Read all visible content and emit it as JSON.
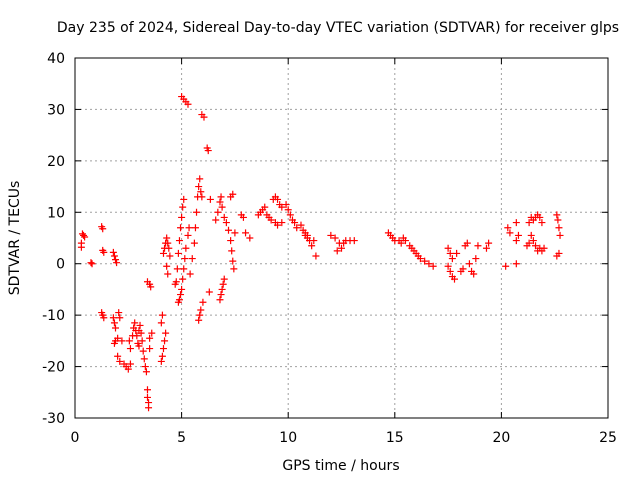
{
  "chart_data": {
    "type": "scatter",
    "title": "Day 235 of 2024, Sidereal Day-to-day VTEC variation (SDTVAR) for receiver glps",
    "xlabel": "GPS time / hours",
    "ylabel": "SDTVAR / TECUs",
    "xlim": [
      0,
      25
    ],
    "ylim": [
      -30,
      40
    ],
    "xticks": [
      "0",
      "5",
      "10",
      "15",
      "20",
      "25"
    ],
    "yticks": [
      "-30",
      "-20",
      "-10",
      "0",
      "10",
      "20",
      "30",
      "40"
    ],
    "xtick_values": [
      0,
      5,
      10,
      15,
      20,
      25
    ],
    "ytick_values": [
      -30,
      -20,
      -10,
      0,
      10,
      20,
      30,
      40
    ],
    "grid": true,
    "marker": "+",
    "color": "#ff0000",
    "series": [
      {
        "name": "SDTVAR",
        "points": [
          [
            0.3,
            3.2
          ],
          [
            0.3,
            4.0
          ],
          [
            0.35,
            5.8
          ],
          [
            0.4,
            5.5
          ],
          [
            0.45,
            5.2
          ],
          [
            0.75,
            0.2
          ],
          [
            0.8,
            0.0
          ],
          [
            1.25,
            -9.5
          ],
          [
            1.3,
            -10.0
          ],
          [
            1.35,
            -10.5
          ],
          [
            1.3,
            2.6
          ],
          [
            1.35,
            2.2
          ],
          [
            1.25,
            7.2
          ],
          [
            1.3,
            6.8
          ],
          [
            1.8,
            -10.5
          ],
          [
            1.85,
            -11.5
          ],
          [
            1.9,
            -12.5
          ],
          [
            1.85,
            -15.5
          ],
          [
            1.9,
            -15.0
          ],
          [
            1.8,
            2.2
          ],
          [
            1.85,
            1.5
          ],
          [
            1.9,
            0.8
          ],
          [
            1.95,
            0.2
          ],
          [
            2.0,
            -18.0
          ],
          [
            2.1,
            -19.0
          ],
          [
            2.0,
            -14.5
          ],
          [
            2.05,
            -9.5
          ],
          [
            2.1,
            -10.5
          ],
          [
            2.2,
            -15.0
          ],
          [
            2.3,
            -19.5
          ],
          [
            2.4,
            -20.0
          ],
          [
            2.5,
            -20.5
          ],
          [
            2.6,
            -19.5
          ],
          [
            2.55,
            -15.0
          ],
          [
            2.6,
            -16.5
          ],
          [
            2.7,
            -14.0
          ],
          [
            2.75,
            -12.5
          ],
          [
            2.8,
            -11.5
          ],
          [
            2.85,
            -13.0
          ],
          [
            2.9,
            -14.0
          ],
          [
            2.95,
            -15.5
          ],
          [
            3.0,
            -16.0
          ],
          [
            3.0,
            -13.0
          ],
          [
            3.05,
            -12.0
          ],
          [
            3.1,
            -13.5
          ],
          [
            3.15,
            -15.0
          ],
          [
            3.2,
            -17.0
          ],
          [
            3.25,
            -18.5
          ],
          [
            3.3,
            -20.0
          ],
          [
            3.35,
            -21.0
          ],
          [
            3.4,
            -24.5
          ],
          [
            3.4,
            -26.0
          ],
          [
            3.45,
            -27.0
          ],
          [
            3.45,
            -28.0
          ],
          [
            3.5,
            -16.5
          ],
          [
            3.5,
            -14.5
          ],
          [
            3.6,
            -13.5
          ],
          [
            3.4,
            -3.5
          ],
          [
            3.5,
            -4.0
          ],
          [
            3.55,
            -4.5
          ],
          [
            4.05,
            -19.0
          ],
          [
            4.1,
            -18.0
          ],
          [
            4.15,
            -16.5
          ],
          [
            4.2,
            -15.0
          ],
          [
            4.25,
            -13.5
          ],
          [
            4.05,
            -11.5
          ],
          [
            4.1,
            -10.0
          ],
          [
            4.15,
            2.0
          ],
          [
            4.2,
            3.0
          ],
          [
            4.25,
            4.0
          ],
          [
            4.3,
            5.0
          ],
          [
            4.35,
            4.0
          ],
          [
            4.4,
            3.0
          ],
          [
            4.45,
            1.5
          ],
          [
            4.3,
            -0.5
          ],
          [
            4.35,
            -2.0
          ],
          [
            4.7,
            -4.0
          ],
          [
            4.75,
            -3.5
          ],
          [
            4.8,
            -1.0
          ],
          [
            4.85,
            2.0
          ],
          [
            4.9,
            4.5
          ],
          [
            4.95,
            7.0
          ],
          [
            5.0,
            9.0
          ],
          [
            5.05,
            11.0
          ],
          [
            5.1,
            12.5
          ],
          [
            4.85,
            -7.5
          ],
          [
            4.9,
            -7.0
          ],
          [
            4.95,
            -6.0
          ],
          [
            5.0,
            -5.0
          ],
          [
            5.05,
            -3.0
          ],
          [
            5.1,
            -1.0
          ],
          [
            5.15,
            1.0
          ],
          [
            5.2,
            3.0
          ],
          [
            5.3,
            5.5
          ],
          [
            5.35,
            7.0
          ],
          [
            5.0,
            32.5
          ],
          [
            5.1,
            32.0
          ],
          [
            5.2,
            31.5
          ],
          [
            5.3,
            31.0
          ],
          [
            5.4,
            -2.0
          ],
          [
            5.5,
            1.0
          ],
          [
            5.6,
            4.0
          ],
          [
            5.65,
            7.0
          ],
          [
            5.7,
            10.0
          ],
          [
            5.75,
            13.0
          ],
          [
            5.8,
            15.0
          ],
          [
            5.85,
            16.5
          ],
          [
            5.9,
            14.0
          ],
          [
            5.95,
            13.0
          ],
          [
            5.8,
            -11.0
          ],
          [
            5.85,
            -10.0
          ],
          [
            5.9,
            -9.0
          ],
          [
            6.0,
            -7.5
          ],
          [
            5.95,
            29.0
          ],
          [
            6.05,
            28.5
          ],
          [
            6.2,
            22.5
          ],
          [
            6.25,
            22.0
          ],
          [
            6.3,
            -5.5
          ],
          [
            6.35,
            12.5
          ],
          [
            6.6,
            8.5
          ],
          [
            6.7,
            10.0
          ],
          [
            6.8,
            12.0
          ],
          [
            6.85,
            13.0
          ],
          [
            6.9,
            11.0
          ],
          [
            6.8,
            -7.0
          ],
          [
            6.85,
            -6.0
          ],
          [
            6.9,
            -5.0
          ],
          [
            6.95,
            -4.0
          ],
          [
            7.0,
            -3.0
          ],
          [
            7.0,
            9.0
          ],
          [
            7.1,
            8.0
          ],
          [
            7.2,
            6.5
          ],
          [
            7.3,
            4.5
          ],
          [
            7.35,
            2.5
          ],
          [
            7.4,
            0.5
          ],
          [
            7.45,
            -1.0
          ],
          [
            7.3,
            13.0
          ],
          [
            7.4,
            13.5
          ],
          [
            7.5,
            6.0
          ],
          [
            7.8,
            9.5
          ],
          [
            7.9,
            9.0
          ],
          [
            8.0,
            6.0
          ],
          [
            8.2,
            5.0
          ],
          [
            8.6,
            9.5
          ],
          [
            8.7,
            10.0
          ],
          [
            8.8,
            10.5
          ],
          [
            8.9,
            11.0
          ],
          [
            9.0,
            9.5
          ],
          [
            9.1,
            9.0
          ],
          [
            9.2,
            8.5
          ],
          [
            9.3,
            12.5
          ],
          [
            9.4,
            13.0
          ],
          [
            9.5,
            12.5
          ],
          [
            9.6,
            11.5
          ],
          [
            9.7,
            11.0
          ],
          [
            9.4,
            8.0
          ],
          [
            9.5,
            7.5
          ],
          [
            9.7,
            8.0
          ],
          [
            9.9,
            11.5
          ],
          [
            10.0,
            10.5
          ],
          [
            10.1,
            9.5
          ],
          [
            10.2,
            8.5
          ],
          [
            10.3,
            8.0
          ],
          [
            10.4,
            7.0
          ],
          [
            10.6,
            7.5
          ],
          [
            10.7,
            6.5
          ],
          [
            10.8,
            5.5
          ],
          [
            10.9,
            5.0
          ],
          [
            10.8,
            6.0
          ],
          [
            10.9,
            5.5
          ],
          [
            11.0,
            4.5
          ],
          [
            11.1,
            3.5
          ],
          [
            11.2,
            4.5
          ],
          [
            11.3,
            1.5
          ],
          [
            12.0,
            5.5
          ],
          [
            12.2,
            5.0
          ],
          [
            12.4,
            4.0
          ],
          [
            12.5,
            3.0
          ],
          [
            12.6,
            4.0
          ],
          [
            12.7,
            4.5
          ],
          [
            12.9,
            4.5
          ],
          [
            13.1,
            4.5
          ],
          [
            12.3,
            2.5
          ],
          [
            14.7,
            6.0
          ],
          [
            14.8,
            5.5
          ],
          [
            14.9,
            5.0
          ],
          [
            15.0,
            4.5
          ],
          [
            15.2,
            4.5
          ],
          [
            15.3,
            4.0
          ],
          [
            15.4,
            5.0
          ],
          [
            15.5,
            4.5
          ],
          [
            15.7,
            3.5
          ],
          [
            15.8,
            3.0
          ],
          [
            15.9,
            2.5
          ],
          [
            16.0,
            2.0
          ],
          [
            16.1,
            1.5
          ],
          [
            16.2,
            1.0
          ],
          [
            16.4,
            0.5
          ],
          [
            16.6,
            0.0
          ],
          [
            16.8,
            -0.5
          ],
          [
            17.5,
            3.0
          ],
          [
            17.6,
            2.0
          ],
          [
            17.7,
            1.0
          ],
          [
            17.5,
            -0.5
          ],
          [
            17.6,
            -1.5
          ],
          [
            17.7,
            -2.5
          ],
          [
            17.8,
            -3.0
          ],
          [
            17.9,
            2.0
          ],
          [
            18.1,
            -1.5
          ],
          [
            18.2,
            -1.0
          ],
          [
            18.3,
            3.5
          ],
          [
            18.4,
            4.0
          ],
          [
            18.5,
            0.0
          ],
          [
            18.6,
            -1.5
          ],
          [
            18.7,
            -2.0
          ],
          [
            18.8,
            1.0
          ],
          [
            18.9,
            3.5
          ],
          [
            19.3,
            3.0
          ],
          [
            19.4,
            4.0
          ],
          [
            20.3,
            7.0
          ],
          [
            20.4,
            6.0
          ],
          [
            20.2,
            -0.5
          ],
          [
            20.7,
            0.0
          ],
          [
            20.7,
            8.0
          ],
          [
            20.8,
            5.5
          ],
          [
            20.7,
            4.5
          ],
          [
            21.2,
            3.5
          ],
          [
            21.3,
            4.0
          ],
          [
            21.3,
            8.0
          ],
          [
            21.4,
            9.0
          ],
          [
            21.5,
            8.5
          ],
          [
            21.6,
            9.0
          ],
          [
            21.7,
            9.5
          ],
          [
            21.8,
            9.0
          ],
          [
            21.9,
            8.0
          ],
          [
            21.4,
            5.5
          ],
          [
            21.5,
            4.5
          ],
          [
            21.6,
            3.5
          ],
          [
            21.7,
            2.5
          ],
          [
            21.8,
            3.0
          ],
          [
            21.9,
            2.5
          ],
          [
            22.0,
            3.0
          ],
          [
            22.6,
            9.5
          ],
          [
            22.65,
            8.5
          ],
          [
            22.7,
            7.0
          ],
          [
            22.75,
            5.5
          ],
          [
            22.6,
            1.5
          ],
          [
            22.7,
            2.0
          ]
        ]
      }
    ]
  }
}
